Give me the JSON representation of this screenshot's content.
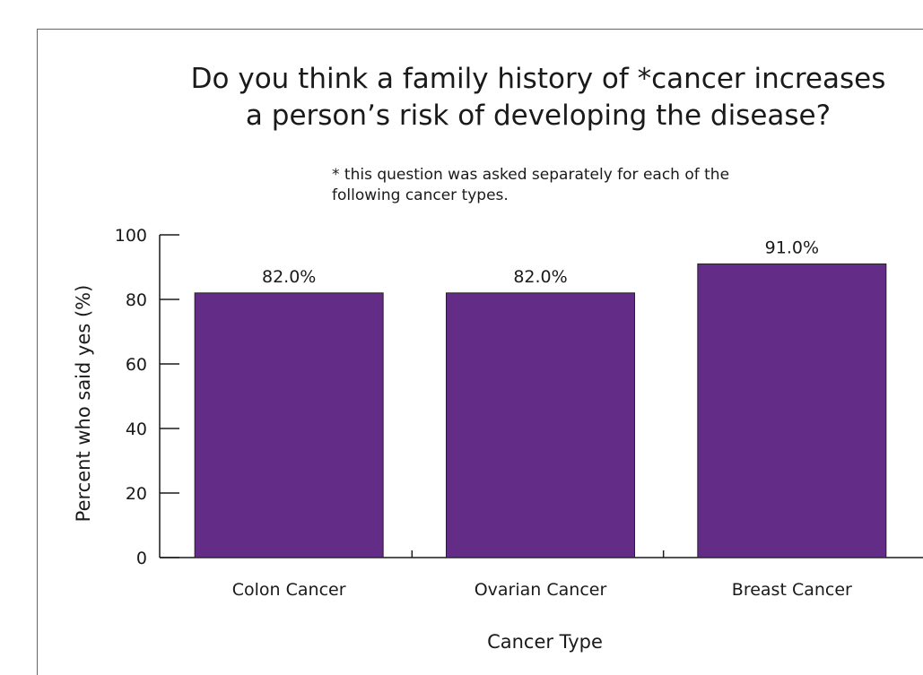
{
  "chart_data": {
    "type": "bar",
    "title": "Do you think a family history of *cancer increases\na person’s risk of developing the disease?",
    "subtitle": "* this question was asked separately for each of the\n  following cancer types.",
    "categories": [
      "Colon Cancer",
      "Ovarian Cancer",
      "Breast Cancer"
    ],
    "values": [
      82.0,
      82.0,
      91.0
    ],
    "data_labels": [
      "82.0%",
      "82.0%",
      "91.0%"
    ],
    "xlabel": "Cancer Type",
    "ylabel": "Percent who said yes (%)",
    "ylim": [
      0,
      100
    ],
    "yticks": [
      0,
      20,
      40,
      60,
      80,
      100
    ],
    "grid": false,
    "bar_color": "#632c87"
  }
}
